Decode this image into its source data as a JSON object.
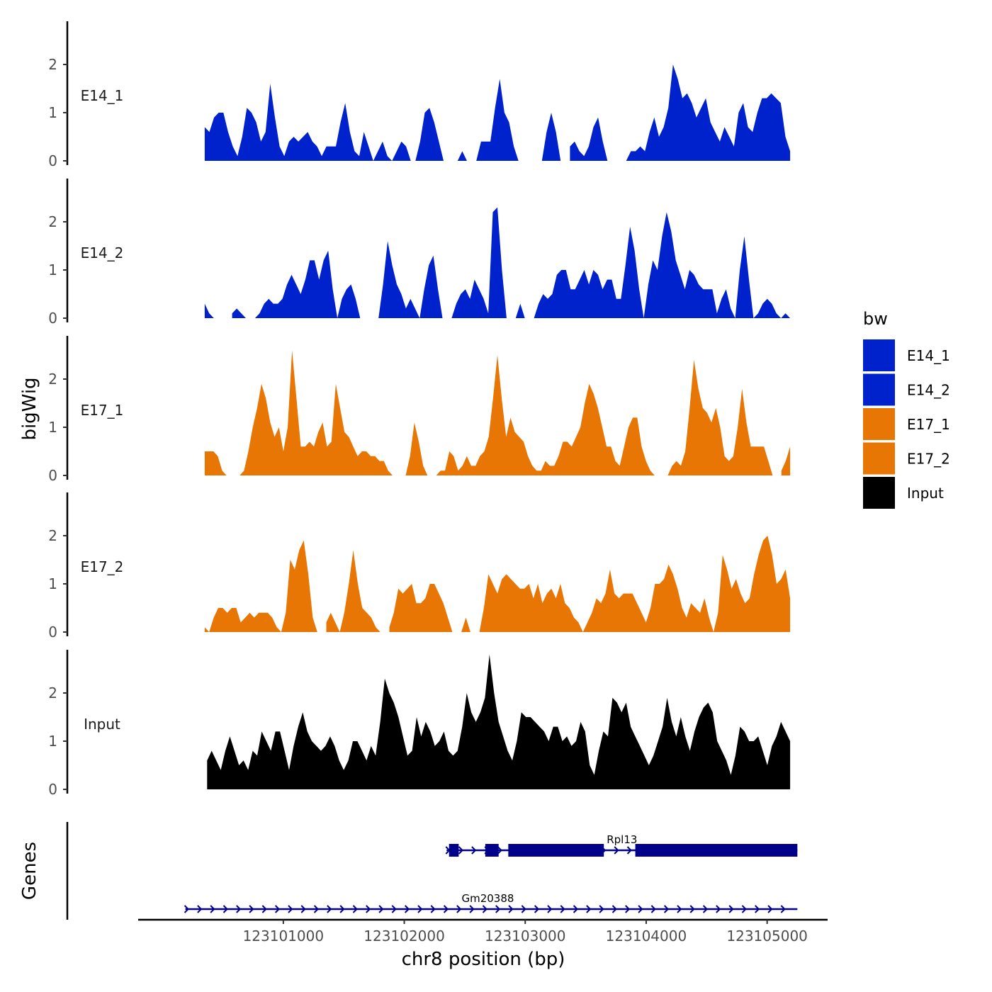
{
  "chart_data": {
    "type": "area",
    "ylabel": "bigWig",
    "xlabel": "chr8 position (bp)",
    "genes_label": "Genes",
    "xlim": [
      123099800,
      123105500
    ],
    "ylim": [
      0,
      2.85
    ],
    "y_ticks": [
      "0",
      "1",
      "2"
    ],
    "x_ticks": [
      {
        "value": 123101000,
        "label": "123101000"
      },
      {
        "value": 123102000,
        "label": "123102000"
      },
      {
        "value": 123103000,
        "label": "123103000"
      },
      {
        "value": 123104000,
        "label": "123104000"
      },
      {
        "value": 123105000,
        "label": "123105000"
      }
    ],
    "legend": {
      "title": "bw",
      "entries": [
        {
          "name": "E14_1",
          "color": "#0022CC"
        },
        {
          "name": "E14_2",
          "color": "#0022CC"
        },
        {
          "name": "E17_1",
          "color": "#E87605"
        },
        {
          "name": "E17_2",
          "color": "#E87605"
        },
        {
          "name": "Input",
          "color": "#000000"
        }
      ]
    },
    "tracks": [
      {
        "name": "E14_1",
        "color": "#0022CC",
        "x_start": 123100350,
        "x_end": 123105190,
        "values": [
          0.7,
          0.6,
          0.9,
          1.0,
          1.0,
          0.6,
          0.3,
          0.1,
          0.5,
          1.1,
          1.0,
          0.8,
          0.4,
          0.6,
          1.6,
          0.9,
          0.3,
          0.1,
          0.4,
          0.5,
          0.4,
          0.5,
          0.6,
          0.4,
          0.3,
          0.1,
          0.3,
          0.3,
          0.3,
          0.8,
          1.2,
          0.6,
          0.2,
          0.1,
          0.6,
          0.3,
          0.0,
          0.2,
          0.4,
          0.1,
          0.0,
          0.2,
          0.4,
          0.3,
          0.0,
          0.0,
          0.4,
          1.0,
          1.1,
          0.8,
          0.4,
          0.0,
          null,
          null,
          0.0,
          0.2,
          0.0,
          null,
          0.0,
          0.4,
          0.4,
          0.4,
          1.1,
          1.7,
          1.0,
          0.8,
          0.3,
          0.0,
          null,
          null,
          null,
          null,
          0.0,
          0.6,
          1.0,
          0.6,
          0.0,
          null,
          0.3,
          0.4,
          0.2,
          0.1,
          0.3,
          0.7,
          0.9,
          0.4,
          0.0,
          null,
          null,
          null,
          0.0,
          0.2,
          0.2,
          0.3,
          0.2,
          0.6,
          0.9,
          0.5,
          0.7,
          1.1,
          2.0,
          1.7,
          1.3,
          1.4,
          1.2,
          0.9,
          1.1,
          1.3,
          0.8,
          0.6,
          0.4,
          0.7,
          0.5,
          0.3,
          1.0,
          1.2,
          0.7,
          0.6,
          1.0,
          1.3,
          1.3,
          1.4,
          1.3,
          1.2,
          0.5,
          0.2
        ]
      },
      {
        "name": "E14_2",
        "color": "#0022CC",
        "x_start": 123100350,
        "x_end": 123105190,
        "values": [
          0.3,
          0.1,
          0.0,
          null,
          null,
          null,
          0.1,
          0.2,
          0.1,
          0.0,
          null,
          0.0,
          0.1,
          0.3,
          0.4,
          0.3,
          0.3,
          0.4,
          0.7,
          0.9,
          0.7,
          0.5,
          0.8,
          1.2,
          1.2,
          0.8,
          1.2,
          1.4,
          0.6,
          0.0,
          0.4,
          0.6,
          0.7,
          0.4,
          0.0,
          null,
          null,
          null,
          0.0,
          0.7,
          1.6,
          1.1,
          0.7,
          0.5,
          0.2,
          0.4,
          0.2,
          0.0,
          0.6,
          1.1,
          1.3,
          0.6,
          0.0,
          null,
          0.0,
          0.3,
          0.5,
          0.6,
          0.4,
          0.8,
          0.6,
          0.4,
          0.1,
          2.2,
          2.3,
          1.0,
          0.0,
          null,
          0.0,
          0.3,
          0.0,
          null,
          0.0,
          0.3,
          0.5,
          0.4,
          0.5,
          0.9,
          1.0,
          1.0,
          0.6,
          0.6,
          0.8,
          1.0,
          0.7,
          1.0,
          0.9,
          0.6,
          0.8,
          0.8,
          0.4,
          0.4,
          1.1,
          1.9,
          1.4,
          0.6,
          0.0,
          0.7,
          1.2,
          1.0,
          1.7,
          2.2,
          1.8,
          1.2,
          0.9,
          0.6,
          1.0,
          0.9,
          0.7,
          0.6,
          0.6,
          0.6,
          0.1,
          0.4,
          0.6,
          0.2,
          0.0,
          1.0,
          1.7,
          0.8,
          0.0,
          0.1,
          0.3,
          0.4,
          0.3,
          0.1,
          0.0,
          0.1,
          0.0
        ]
      },
      {
        "name": "E17_1",
        "color": "#E87605",
        "x_start": 123100350,
        "x_end": 123105190,
        "values": [
          0.5,
          0.5,
          0.5,
          0.4,
          0.1,
          0.0,
          null,
          null,
          0.0,
          0.1,
          0.5,
          1.0,
          1.4,
          1.9,
          1.6,
          1.1,
          0.8,
          1.0,
          0.5,
          1.0,
          2.6,
          1.6,
          0.6,
          0.6,
          0.7,
          0.6,
          0.9,
          1.1,
          0.6,
          0.7,
          1.9,
          1.4,
          0.9,
          0.8,
          0.6,
          0.4,
          0.5,
          0.5,
          0.4,
          0.4,
          0.3,
          0.3,
          0.1,
          0.0,
          null,
          null,
          0.0,
          0.4,
          1.1,
          0.7,
          0.2,
          0.0,
          null,
          0.0,
          0.1,
          0.1,
          0.5,
          0.4,
          0.1,
          0.2,
          0.4,
          0.2,
          0.2,
          0.4,
          0.5,
          0.8,
          1.6,
          2.5,
          1.6,
          0.8,
          1.2,
          0.9,
          0.8,
          0.7,
          0.4,
          0.2,
          0.1,
          0.1,
          0.3,
          0.2,
          0.2,
          0.4,
          0.7,
          0.7,
          0.6,
          0.8,
          1.0,
          1.5,
          1.9,
          1.7,
          1.4,
          1.0,
          0.6,
          0.6,
          0.3,
          0.2,
          0.6,
          1.0,
          1.2,
          1.2,
          0.6,
          0.3,
          0.1,
          0.0,
          null,
          null,
          0.0,
          0.2,
          0.3,
          0.2,
          0.5,
          1.4,
          2.4,
          1.8,
          1.4,
          1.3,
          1.1,
          1.4,
          1.0,
          0.4,
          0.3,
          0.4,
          1.0,
          1.8,
          1.1,
          0.6,
          0.6,
          0.6,
          0.6,
          0.3,
          0.0,
          null,
          0.1,
          0.3,
          0.6
        ]
      },
      {
        "name": "E17_2",
        "color": "#E87605",
        "x_start": 123100350,
        "x_end": 123105190,
        "values": [
          0.1,
          0.0,
          0.3,
          0.5,
          0.5,
          0.4,
          0.5,
          0.5,
          0.2,
          0.3,
          0.4,
          0.3,
          0.4,
          0.4,
          0.4,
          0.3,
          0.1,
          0.0,
          0.4,
          1.5,
          1.3,
          1.7,
          1.9,
          1.2,
          0.3,
          0.0,
          null,
          0.2,
          0.4,
          0.2,
          0.0,
          0.4,
          1.0,
          1.7,
          1.0,
          0.5,
          0.4,
          0.3,
          0.1,
          0.0,
          null,
          0.1,
          0.4,
          0.9,
          0.8,
          0.9,
          1.0,
          0.6,
          0.6,
          0.7,
          1.0,
          1.0,
          0.8,
          0.6,
          0.3,
          0.0,
          null,
          0.0,
          0.3,
          0.0,
          null,
          0.0,
          0.5,
          1.2,
          1.0,
          0.8,
          1.1,
          1.2,
          1.1,
          1.0,
          0.9,
          0.9,
          1.0,
          0.7,
          1.0,
          0.6,
          0.8,
          0.9,
          0.7,
          1.0,
          0.6,
          0.5,
          0.3,
          0.2,
          0.0,
          0.2,
          0.4,
          0.7,
          0.6,
          0.8,
          1.3,
          0.8,
          0.7,
          0.8,
          0.8,
          0.8,
          0.6,
          0.4,
          0.2,
          0.5,
          1.0,
          1.0,
          1.1,
          1.4,
          1.2,
          0.9,
          0.5,
          0.3,
          0.6,
          0.5,
          0.4,
          0.7,
          0.3,
          0.0,
          0.4,
          1.6,
          1.3,
          0.9,
          1.1,
          0.8,
          0.6,
          0.7,
          1.2,
          1.6,
          1.9,
          2.0,
          1.6,
          1.0,
          1.1,
          1.3,
          0.7
        ]
      },
      {
        "name": "Input",
        "color": "#000000",
        "x_start": 123100370,
        "x_end": 123105190,
        "values": [
          0.6,
          0.8,
          0.6,
          0.4,
          0.8,
          1.1,
          0.8,
          0.5,
          0.6,
          0.4,
          0.8,
          0.7,
          1.2,
          1.0,
          0.8,
          1.2,
          1.2,
          0.8,
          0.4,
          0.9,
          1.3,
          1.6,
          1.2,
          1.0,
          0.9,
          0.8,
          0.9,
          1.1,
          0.9,
          0.6,
          0.4,
          0.6,
          1.0,
          1.0,
          0.8,
          0.6,
          0.9,
          0.7,
          1.4,
          2.3,
          2.0,
          1.8,
          1.5,
          1.1,
          0.7,
          0.8,
          1.5,
          1.1,
          1.4,
          1.2,
          0.9,
          1.0,
          1.2,
          0.8,
          0.7,
          0.8,
          1.3,
          2.0,
          1.6,
          1.4,
          1.6,
          1.9,
          2.8,
          2.0,
          1.4,
          1.1,
          0.8,
          0.6,
          1.0,
          1.6,
          1.5,
          1.5,
          1.4,
          1.3,
          1.2,
          1.0,
          1.3,
          1.3,
          1.0,
          1.1,
          0.9,
          1.0,
          1.4,
          1.2,
          0.5,
          0.3,
          0.8,
          1.2,
          1.1,
          1.9,
          1.8,
          1.6,
          1.8,
          1.3,
          1.1,
          0.9,
          0.7,
          0.5,
          0.7,
          1.0,
          1.3,
          1.9,
          1.4,
          1.1,
          1.5,
          1.1,
          0.8,
          1.2,
          1.5,
          1.7,
          1.8,
          1.6,
          1.0,
          0.8,
          0.6,
          0.3,
          0.7,
          1.3,
          1.2,
          1.0,
          1.0,
          1.1,
          0.8,
          0.5,
          0.9,
          1.1,
          1.4,
          1.2,
          1.0
        ]
      }
    ],
    "genes": [
      {
        "name": "Rpl13",
        "start": 123102350,
        "end": 123105250,
        "strand": "+",
        "exons": [
          [
            123102370,
            123102450
          ],
          [
            123102670,
            123102780
          ],
          [
            123102860,
            123103650
          ],
          [
            123103910,
            123105250
          ]
        ]
      },
      {
        "name": "Gm20388",
        "start": 123100190,
        "end": 123105250,
        "strand": "+",
        "exons": []
      }
    ]
  }
}
